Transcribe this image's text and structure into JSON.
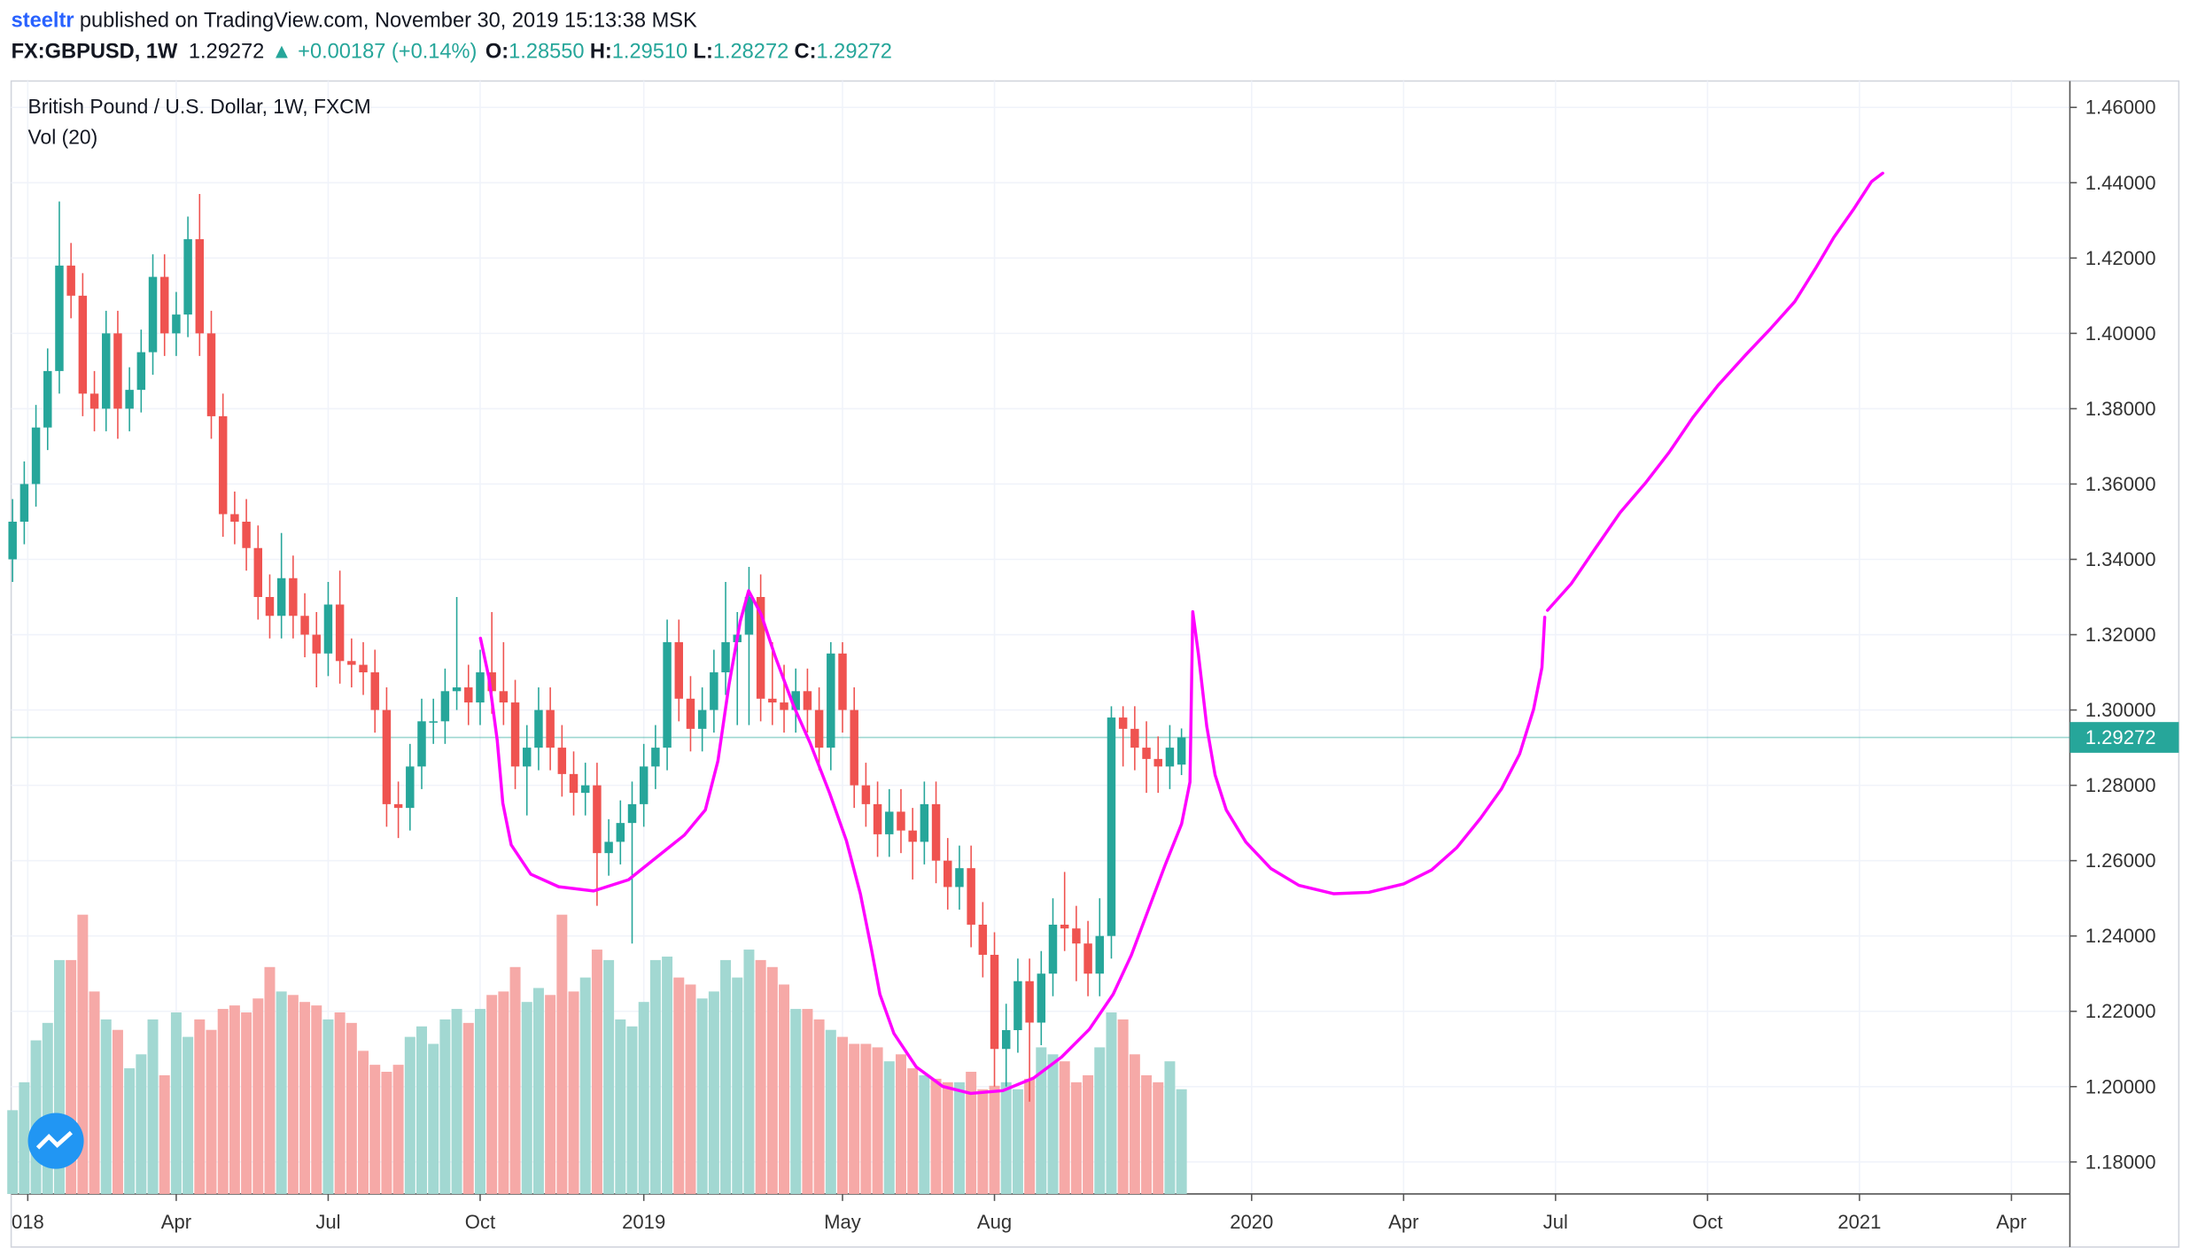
{
  "header": {
    "author": "steeltr",
    "published": "published on TradingView.com, November 30, 2019 15:13:38 MSK",
    "symbol": "FX:GBPUSD, 1W",
    "price": "1.29272",
    "change": "▲ +0.00187 (+0.14%)",
    "ohlc": [
      {
        "label": "O:",
        "value": "1.28550"
      },
      {
        "label": "H:",
        "value": "1.29510"
      },
      {
        "label": "L:",
        "value": "1.28272"
      },
      {
        "label": "C:",
        "value": "1.29272"
      }
    ]
  },
  "chart_data": {
    "type": "candlestick",
    "title": "British Pound / U.S. Dollar, 1W, FXCM",
    "volume_title": "Vol (20)",
    "colors": {
      "up": "#26a69a",
      "down": "#ef5350",
      "up_volume": "#a2d8d2",
      "down_volume": "#f6a9a7"
    },
    "open": [
      1.34,
      1.35,
      1.36,
      1.375,
      1.39,
      1.418,
      1.41,
      1.384,
      1.38,
      1.4,
      1.38,
      1.385,
      1.395,
      1.415,
      1.4,
      1.405,
      1.425,
      1.4,
      1.378,
      1.352,
      1.35,
      1.343,
      1.33,
      1.325,
      1.335,
      1.325,
      1.32,
      1.315,
      1.328,
      1.313,
      1.312,
      1.31,
      1.3,
      1.275,
      1.274,
      1.285,
      1.297,
      1.297,
      1.305,
      1.306,
      1.302,
      1.31,
      1.305,
      1.302,
      1.285,
      1.29,
      1.3,
      1.29,
      1.283,
      1.278,
      1.28,
      1.262,
      1.265,
      1.27,
      1.275,
      1.285,
      1.29,
      1.318,
      1.303,
      1.295,
      1.3,
      1.31,
      1.318,
      1.32,
      1.33,
      1.303,
      1.302,
      1.3,
      1.305,
      1.3,
      1.29,
      1.315,
      1.3,
      1.28,
      1.275,
      1.267,
      1.273,
      1.268,
      1.265,
      1.275,
      1.26,
      1.253,
      1.258,
      1.243,
      1.235,
      1.21,
      1.215,
      1.228,
      1.217,
      1.23,
      1.243,
      1.242,
      1.238,
      1.23,
      1.24,
      1.298,
      1.295,
      1.29,
      1.287,
      1.285,
      1.2855
    ],
    "high": [
      1.356,
      1.366,
      1.381,
      1.396,
      1.435,
      1.424,
      1.416,
      1.39,
      1.406,
      1.406,
      1.391,
      1.401,
      1.421,
      1.421,
      1.411,
      1.431,
      1.437,
      1.406,
      1.384,
      1.358,
      1.356,
      1.349,
      1.336,
      1.347,
      1.341,
      1.331,
      1.326,
      1.334,
      1.337,
      1.319,
      1.318,
      1.316,
      1.306,
      1.281,
      1.291,
      1.303,
      1.303,
      1.311,
      1.33,
      1.312,
      1.316,
      1.326,
      1.318,
      1.308,
      1.296,
      1.306,
      1.306,
      1.296,
      1.289,
      1.286,
      1.286,
      1.271,
      1.276,
      1.281,
      1.291,
      1.296,
      1.324,
      1.324,
      1.309,
      1.306,
      1.316,
      1.334,
      1.326,
      1.338,
      1.336,
      1.318,
      1.312,
      1.311,
      1.311,
      1.306,
      1.318,
      1.318,
      1.306,
      1.286,
      1.281,
      1.279,
      1.279,
      1.274,
      1.281,
      1.281,
      1.266,
      1.264,
      1.264,
      1.249,
      1.241,
      1.222,
      1.234,
      1.234,
      1.236,
      1.25,
      1.257,
      1.248,
      1.244,
      1.25,
      1.301,
      1.301,
      1.301,
      1.297,
      1.293,
      1.296,
      1.2951
    ],
    "low": [
      1.334,
      1.344,
      1.354,
      1.369,
      1.384,
      1.404,
      1.378,
      1.374,
      1.374,
      1.372,
      1.374,
      1.379,
      1.389,
      1.394,
      1.394,
      1.399,
      1.394,
      1.372,
      1.346,
      1.344,
      1.337,
      1.324,
      1.319,
      1.319,
      1.319,
      1.314,
      1.306,
      1.309,
      1.307,
      1.306,
      1.304,
      1.294,
      1.269,
      1.266,
      1.268,
      1.279,
      1.291,
      1.291,
      1.3,
      1.296,
      1.296,
      1.299,
      1.296,
      1.279,
      1.272,
      1.284,
      1.284,
      1.277,
      1.272,
      1.272,
      1.248,
      1.256,
      1.259,
      1.238,
      1.269,
      1.279,
      1.284,
      1.297,
      1.289,
      1.289,
      1.294,
      1.304,
      1.296,
      1.296,
      1.297,
      1.296,
      1.294,
      1.294,
      1.294,
      1.284,
      1.284,
      1.294,
      1.274,
      1.269,
      1.261,
      1.261,
      1.262,
      1.255,
      1.259,
      1.254,
      1.247,
      1.247,
      1.237,
      1.229,
      1.2,
      1.2,
      1.209,
      1.196,
      1.211,
      1.224,
      1.236,
      1.228,
      1.224,
      1.224,
      1.234,
      1.285,
      1.284,
      1.278,
      1.278,
      1.279,
      1.28272
    ],
    "close": [
      1.35,
      1.36,
      1.375,
      1.39,
      1.418,
      1.41,
      1.384,
      1.38,
      1.4,
      1.38,
      1.385,
      1.395,
      1.415,
      1.4,
      1.405,
      1.425,
      1.4,
      1.378,
      1.352,
      1.35,
      1.343,
      1.33,
      1.325,
      1.335,
      1.325,
      1.32,
      1.315,
      1.328,
      1.313,
      1.312,
      1.31,
      1.3,
      1.275,
      1.274,
      1.285,
      1.297,
      1.297,
      1.305,
      1.306,
      1.302,
      1.31,
      1.305,
      1.302,
      1.285,
      1.29,
      1.3,
      1.29,
      1.283,
      1.278,
      1.28,
      1.262,
      1.265,
      1.27,
      1.275,
      1.285,
      1.29,
      1.318,
      1.303,
      1.295,
      1.3,
      1.31,
      1.318,
      1.32,
      1.33,
      1.303,
      1.302,
      1.3,
      1.305,
      1.3,
      1.29,
      1.315,
      1.3,
      1.28,
      1.275,
      1.267,
      1.273,
      1.268,
      1.265,
      1.275,
      1.26,
      1.253,
      1.258,
      1.243,
      1.235,
      1.21,
      1.215,
      1.228,
      1.217,
      1.23,
      1.243,
      1.242,
      1.238,
      1.23,
      1.24,
      1.298,
      1.295,
      1.29,
      1.287,
      1.285,
      1.29,
      1.29272
    ],
    "volume": [
      24,
      32,
      44,
      49,
      67,
      67,
      80,
      58,
      50,
      47,
      36,
      40,
      50,
      34,
      52,
      45,
      50,
      47,
      53,
      54,
      52,
      56,
      65,
      58,
      57,
      55,
      54,
      50,
      52,
      49,
      41,
      37,
      35,
      37,
      45,
      48,
      43,
      50,
      53,
      49,
      53,
      57,
      58,
      65,
      55,
      59,
      57,
      80,
      58,
      62,
      70,
      67,
      50,
      48,
      55,
      67,
      68,
      62,
      60,
      56,
      58,
      67,
      62,
      70,
      67,
      65,
      60,
      53,
      53,
      50,
      47,
      45,
      43,
      43,
      42,
      38,
      40,
      36,
      34,
      33,
      32,
      32,
      35,
      30,
      31,
      32,
      30,
      33,
      42,
      40,
      38,
      32,
      34,
      42,
      52,
      50,
      40,
      34,
      32,
      38,
      30
    ],
    "volume_ylim": [
      0,
      100
    ],
    "ylim": [
      1.1715,
      1.467
    ],
    "yticks": [
      {
        "value": 1.18,
        "label": "1.18000"
      },
      {
        "value": 1.2,
        "label": "1.20000"
      },
      {
        "value": 1.22,
        "label": "1.22000"
      },
      {
        "value": 1.24,
        "label": "1.24000"
      },
      {
        "value": 1.26,
        "label": "1.26000"
      },
      {
        "value": 1.28,
        "label": "1.28000"
      },
      {
        "value": 1.3,
        "label": "1.30000"
      },
      {
        "value": 1.32,
        "label": "1.32000"
      },
      {
        "value": 1.34,
        "label": "1.34000"
      },
      {
        "value": 1.36,
        "label": "1.36000"
      },
      {
        "value": 1.38,
        "label": "1.38000"
      },
      {
        "value": 1.4,
        "label": "1.40000"
      },
      {
        "value": 1.42,
        "label": "1.42000"
      },
      {
        "value": 1.44,
        "label": "1.44000"
      },
      {
        "value": 1.46,
        "label": "1.46000"
      }
    ],
    "xlim": [
      -0.12,
      176
    ],
    "xticks": [
      {
        "value": 1.3,
        "label": "018"
      },
      {
        "value": 14,
        "label": "Apr"
      },
      {
        "value": 27,
        "label": "Jul"
      },
      {
        "value": 40,
        "label": "Oct"
      },
      {
        "value": 54,
        "label": "2019"
      },
      {
        "value": 71,
        "label": "May"
      },
      {
        "value": 84,
        "label": "Aug"
      },
      {
        "value": 106,
        "label": "2020"
      },
      {
        "value": 119,
        "label": "Apr"
      },
      {
        "value": 132,
        "label": "Jul"
      },
      {
        "value": 145,
        "label": "Oct"
      },
      {
        "value": 158,
        "label": "2021"
      },
      {
        "value": 171,
        "label": "Apr"
      }
    ],
    "last_price": {
      "value": 1.29272,
      "label": "1.29272"
    },
    "grid": true
  }
}
